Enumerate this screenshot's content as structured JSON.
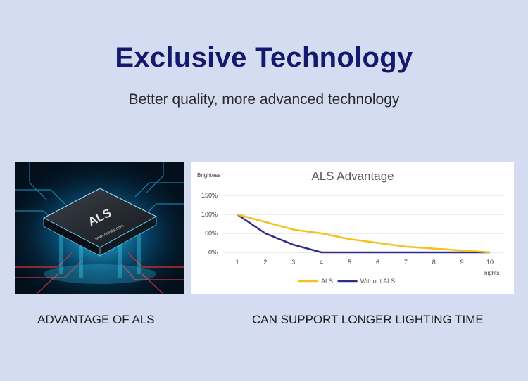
{
  "header": {
    "title": "Exclusive Technology",
    "subtitle": "Better quality, more advanced technology"
  },
  "chip": {
    "label": "ALS",
    "url": "www.sresky.com"
  },
  "captions": {
    "left": "ADVANTAGE OF ALS",
    "right": "CAN SUPPORT LONGER LIGHTING TIME"
  },
  "colors": {
    "background": "#d4dcf2",
    "title": "#141a6b",
    "als_series": "#f5c21a",
    "without_als_series": "#2e2d8c"
  },
  "chart_data": {
    "type": "line",
    "title": "ALS Advantage",
    "ylabel": "Brightess",
    "xlabel": "nights",
    "x": [
      1,
      2,
      3,
      4,
      5,
      6,
      7,
      8,
      9,
      10
    ],
    "ylim": [
      0,
      150
    ],
    "yticks": [
      "0%",
      "50%",
      "100%",
      "150%"
    ],
    "grid": true,
    "legend_position": "bottom",
    "series": [
      {
        "name": "ALS",
        "color": "#f5c21a",
        "values": [
          100,
          80,
          60,
          50,
          35,
          25,
          15,
          10,
          5,
          0
        ]
      },
      {
        "name": "Without ALS",
        "color": "#2e2d8c",
        "values": [
          100,
          50,
          20,
          0,
          0,
          0,
          0,
          0,
          0,
          0
        ]
      }
    ]
  }
}
